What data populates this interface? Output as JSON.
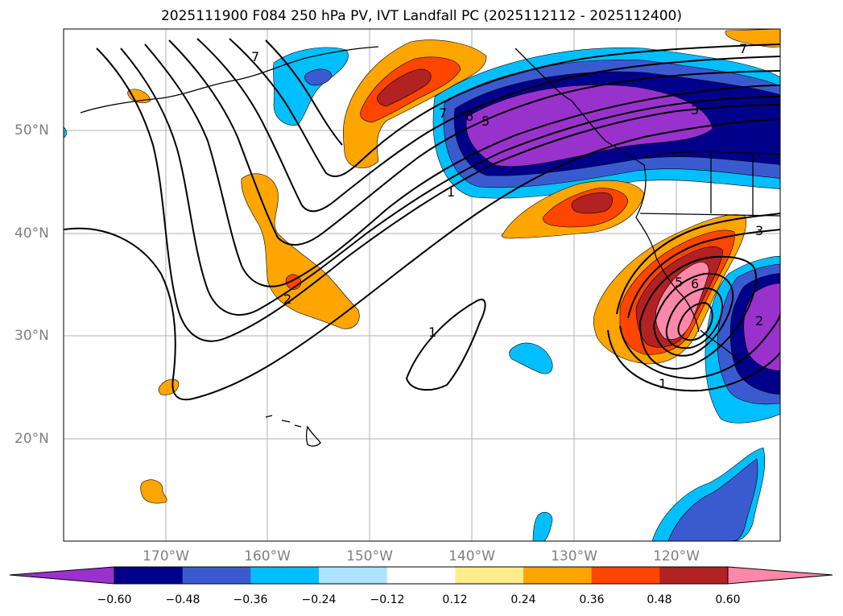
{
  "title": "2025111900 F084 250 hPa PV, IVT Landfall PC (2025112112 - 2025112400)",
  "map": {
    "lat_labels": [
      "50°N",
      "40°N",
      "30°N",
      "20°N"
    ],
    "lon_labels": [
      "170°W",
      "160°W",
      "150°W",
      "140°W",
      "130°W",
      "120°W"
    ],
    "contour_labels": [
      "7",
      "7",
      "7",
      "6",
      "5",
      "3",
      "1",
      "1",
      "2",
      "6",
      "5",
      "3",
      "1",
      "2"
    ]
  },
  "colorbar": {
    "ticks": [
      "−0.60",
      "−0.48",
      "−0.36",
      "−0.24",
      "−0.12",
      "0.12",
      "0.24",
      "0.36",
      "0.48",
      "0.60"
    ],
    "colors": [
      "#9932CC",
      "#00008B",
      "#3A5BD0",
      "#00BFFF",
      "#ADE3FF",
      "#FFFFFF",
      "#FFEC8B",
      "#FFA500",
      "#FF4500",
      "#B22222",
      "#FF88AA"
    ]
  }
}
